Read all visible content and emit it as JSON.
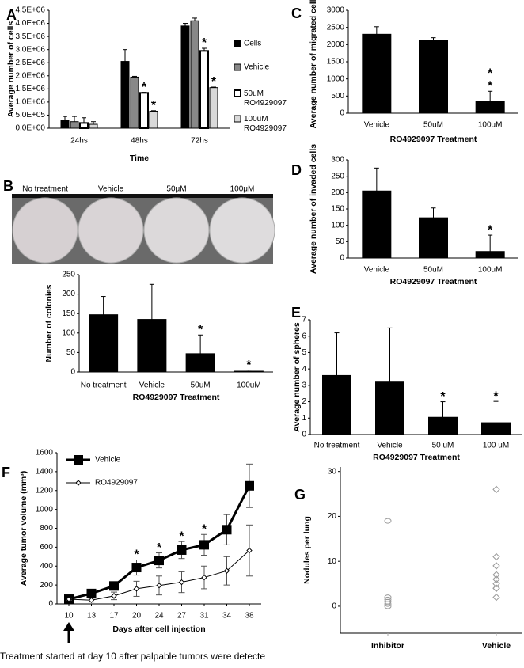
{
  "chart_data": [
    {
      "panel": "A",
      "type": "bar",
      "xlabel": "Time",
      "ylabel": "Average number of cells",
      "categories": [
        "24hs",
        "48hs",
        "72hs"
      ],
      "series": [
        {
          "name": "Cells",
          "color": "#000000",
          "values": [
            300000,
            2550000,
            3900000
          ],
          "errors": [
            150000,
            450000,
            100000
          ]
        },
        {
          "name": "Vehicle",
          "color": "#888888",
          "values": [
            250000,
            1950000,
            4100000
          ],
          "errors": [
            200000,
            30000,
            100000
          ]
        },
        {
          "name": "50uM RO4929097",
          "color": "#ffffff",
          "values": [
            200000,
            1350000,
            2950000
          ],
          "errors": [
            200000,
            20000,
            100000
          ]
        },
        {
          "name": "100uM RO4929097",
          "color": "#d9d9d9",
          "values": [
            150000,
            650000,
            1550000
          ],
          "errors": [
            100000,
            20000,
            20000
          ]
        }
      ],
      "ylim": [
        0,
        4500000
      ],
      "yticks": [
        {
          "value": 0,
          "label": "0.0E+00"
        },
        {
          "value": 500000,
          "label": "5.0E+05"
        },
        {
          "value": 1000000,
          "label": "1.0E+06"
        },
        {
          "value": 1500000,
          "label": "1.5E+06"
        },
        {
          "value": 2000000,
          "label": "2.0E+06"
        },
        {
          "value": 2500000,
          "label": "2.5E+06"
        },
        {
          "value": 3000000,
          "label": "3.0E+06"
        },
        {
          "value": 3500000,
          "label": "3.5E+06"
        },
        {
          "value": 4000000,
          "label": "4.0E+06"
        },
        {
          "value": 4500000,
          "label": "4.5E+06"
        }
      ],
      "annotations": [
        {
          "text": "*",
          "category": "48hs",
          "series": "50uM RO4929097"
        },
        {
          "text": "*",
          "category": "48hs",
          "series": "100uM RO4929097"
        },
        {
          "text": "*",
          "category": "72hs",
          "series": "50uM RO4929097"
        },
        {
          "text": "*",
          "category": "72hs",
          "series": "100uM RO4929097"
        }
      ]
    },
    {
      "panel": "B",
      "type": "bar",
      "image_labels": [
        "No treatment",
        "Vehicle",
        "50μM",
        "100μM"
      ],
      "xlabel": "RO4929097 Treatment",
      "ylabel": "Number of colonies",
      "categories": [
        "No treatment",
        "Vehicle",
        "50uM",
        "100uM"
      ],
      "values": [
        147,
        135,
        47,
        2
      ],
      "errors": [
        47,
        90,
        48,
        3
      ],
      "color": "#000000",
      "ylim": [
        0,
        250
      ],
      "yticks": [
        0,
        50,
        100,
        150,
        200,
        250
      ],
      "annotations": [
        {
          "text": "*",
          "category": "50uM"
        },
        {
          "text": "*",
          "category": "100uM"
        }
      ]
    },
    {
      "panel": "C",
      "type": "bar",
      "xlabel": "RO4929097 Treatment",
      "ylabel": "Average number of migrated cells",
      "categories": [
        "Vehicle",
        "50uM",
        "100uM"
      ],
      "values": [
        2300,
        2120,
        340
      ],
      "errors": [
        220,
        80,
        300
      ],
      "color": "#000000",
      "ylim": [
        0,
        3000
      ],
      "yticks": [
        0,
        500,
        1000,
        1500,
        2000,
        2500,
        3000
      ],
      "annotations": [
        {
          "text": "*",
          "category": "100uM"
        },
        {
          "text": "*",
          "category": "100uM"
        }
      ]
    },
    {
      "panel": "D",
      "type": "bar",
      "xlabel": "RO4929097 Treatment",
      "ylabel": "Average number of invaded cells",
      "categories": [
        "Vehicle",
        "50uM",
        "100uM"
      ],
      "values": [
        205,
        123,
        20
      ],
      "errors": [
        70,
        30,
        50
      ],
      "color": "#000000",
      "ylim": [
        0,
        300
      ],
      "yticks": [
        0,
        50,
        100,
        150,
        200,
        250,
        300
      ],
      "annotations": [
        {
          "text": "*",
          "category": "100uM"
        }
      ]
    },
    {
      "panel": "E",
      "type": "bar",
      "xlabel": "RO4929097 Treatment",
      "ylabel": "Average number of spheres",
      "categories": [
        "No treatment",
        "Vehicle",
        "50 uM",
        "100 uM"
      ],
      "values": [
        3.6,
        3.2,
        1.05,
        0.72
      ],
      "errors": [
        2.6,
        3.3,
        0.95,
        1.3
      ],
      "color": "#000000",
      "ylim": [
        0,
        7
      ],
      "yticks": [
        0,
        1,
        2,
        3,
        4,
        5,
        6,
        7
      ],
      "annotations": [
        {
          "text": "*",
          "category": "50 uM"
        },
        {
          "text": "*",
          "category": "100 uM"
        }
      ]
    },
    {
      "panel": "F",
      "type": "line",
      "xlabel": "Days after cell injection",
      "ylabel": "Average tumor volume (mm³)",
      "categories": [
        "10",
        "13",
        "17",
        "20",
        "24",
        "27",
        "31",
        "34",
        "38"
      ],
      "series": [
        {
          "name": "Vehicle",
          "color": "#000000",
          "marker": "square",
          "values": [
            50,
            110,
            190,
            385,
            460,
            570,
            625,
            785,
            1250
          ],
          "errors": [
            20,
            30,
            35,
            80,
            80,
            90,
            110,
            160,
            230
          ]
        },
        {
          "name": "RO4929097",
          "color": "#000000",
          "marker": "diamond",
          "values": [
            50,
            40,
            85,
            160,
            195,
            230,
            280,
            350,
            565
          ],
          "errors": [
            10,
            20,
            40,
            80,
            100,
            110,
            120,
            150,
            270
          ]
        }
      ],
      "ylim": [
        0,
        1600
      ],
      "yticks": [
        0,
        200,
        400,
        600,
        800,
        1000,
        1200,
        1400,
        1600
      ],
      "annotations": [
        {
          "text": "*",
          "category": "20"
        },
        {
          "text": "*",
          "category": "24"
        },
        {
          "text": "*",
          "category": "27"
        },
        {
          "text": "*",
          "category": "31"
        }
      ],
      "footnote": "Treatment started at day 10 after palpable tumors were detecte"
    },
    {
      "panel": "G",
      "type": "strip",
      "ylabel": "Nodules per lung",
      "categories": [
        "Inhibitor",
        "Vehicle"
      ],
      "values": [
        [
          19,
          2,
          1.5,
          1,
          0.5,
          0
        ],
        [
          26,
          11,
          9,
          7,
          6,
          5,
          4,
          4,
          2
        ]
      ],
      "markers": [
        "circle",
        "diamond"
      ],
      "color": "#999999",
      "ylim": [
        -6,
        31
      ],
      "yticks": [
        0,
        10,
        20,
        30
      ]
    }
  ]
}
